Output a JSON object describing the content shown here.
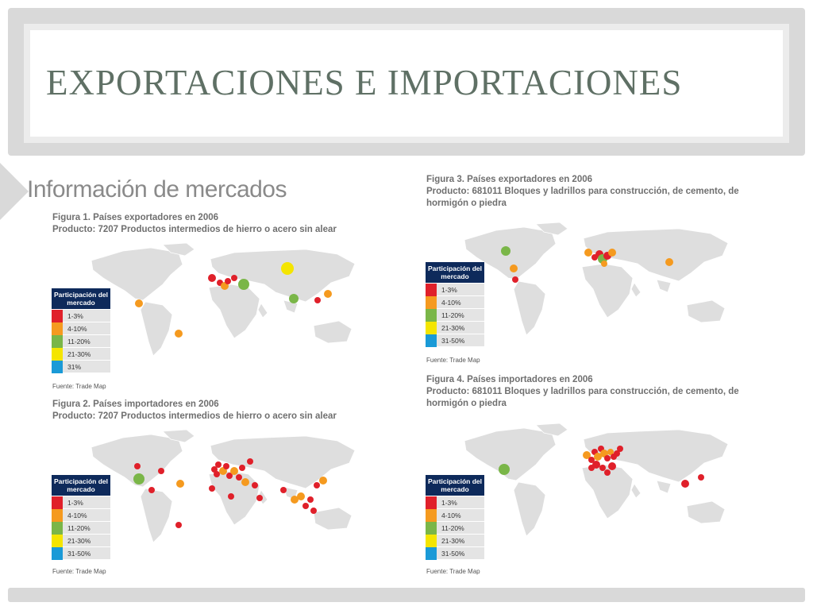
{
  "slide": {
    "title": "EXPORTACIONES E IMPORTACIONES"
  },
  "heading": "Información de mercados",
  "colors": {
    "1-3": "#e0202a",
    "4-10": "#f59a1f",
    "11-20": "#7ab648",
    "21-30": "#f4e500",
    "31-50": "#1a9ad7",
    "legend_header": "#0e2a5b"
  },
  "figures": [
    {
      "id": "fig1",
      "caption_line1": "Figura 1. Países exportadores en 2006",
      "caption_line2": "Producto: 7207 Productos intermedios de hierro o acero sin alear",
      "caption_line3": "",
      "legend_title": "Participación del mercado",
      "legend": [
        {
          "label": "1-3%",
          "color": "#e0202a"
        },
        {
          "label": "4-10%",
          "color": "#f59a1f"
        },
        {
          "label": "11-20%",
          "color": "#7ab648"
        },
        {
          "label": "21-30%",
          "color": "#f4e500"
        },
        {
          "label": "31%",
          "color": "#1a9ad7"
        }
      ],
      "source": "Fuente: Trade Map"
    },
    {
      "id": "fig2",
      "caption_line1": "Figura 2. Países importadores en 2006",
      "caption_line2": "Producto: 7207 Productos intermedios de hierro o acero sin alear",
      "caption_line3": "",
      "legend_title": "Participación del mercado",
      "legend": [
        {
          "label": "1-3%",
          "color": "#e0202a"
        },
        {
          "label": "4-10%",
          "color": "#f59a1f"
        },
        {
          "label": "11-20%",
          "color": "#7ab648"
        },
        {
          "label": "21-30%",
          "color": "#f4e500"
        },
        {
          "label": "31-50%",
          "color": "#1a9ad7"
        }
      ],
      "source": "Fuente: Trade Map"
    },
    {
      "id": "fig3",
      "caption_line1": "Figura 3. Países exportadores en 2006",
      "caption_line2": "Producto: 681011 Bloques y ladrillos para construcción, de cemento, de",
      "caption_line3": "hormigón o piedra",
      "legend_title": "Participación del mercado",
      "legend": [
        {
          "label": "1-3%",
          "color": "#e0202a"
        },
        {
          "label": "4-10%",
          "color": "#f59a1f"
        },
        {
          "label": "11-20%",
          "color": "#7ab648"
        },
        {
          "label": "21-30%",
          "color": "#f4e500"
        },
        {
          "label": "31-50%",
          "color": "#1a9ad7"
        }
      ],
      "source": "Fuente: Trade Map"
    },
    {
      "id": "fig4",
      "caption_line1": "Figura 4. Países importadores en 2006",
      "caption_line2": "Producto: 681011 Bloques y ladrillos para construcción, de cemento, de",
      "caption_line3": "hormigón o piedra",
      "legend_title": "Participación del mercado",
      "legend": [
        {
          "label": "1-3%",
          "color": "#e0202a"
        },
        {
          "label": "4-10%",
          "color": "#f59a1f"
        },
        {
          "label": "11-20%",
          "color": "#7ab648"
        },
        {
          "label": "21-30%",
          "color": "#f4e500"
        },
        {
          "label": "31-50%",
          "color": "#1a9ad7"
        }
      ],
      "source": "Fuente: Trade Map"
    }
  ]
}
